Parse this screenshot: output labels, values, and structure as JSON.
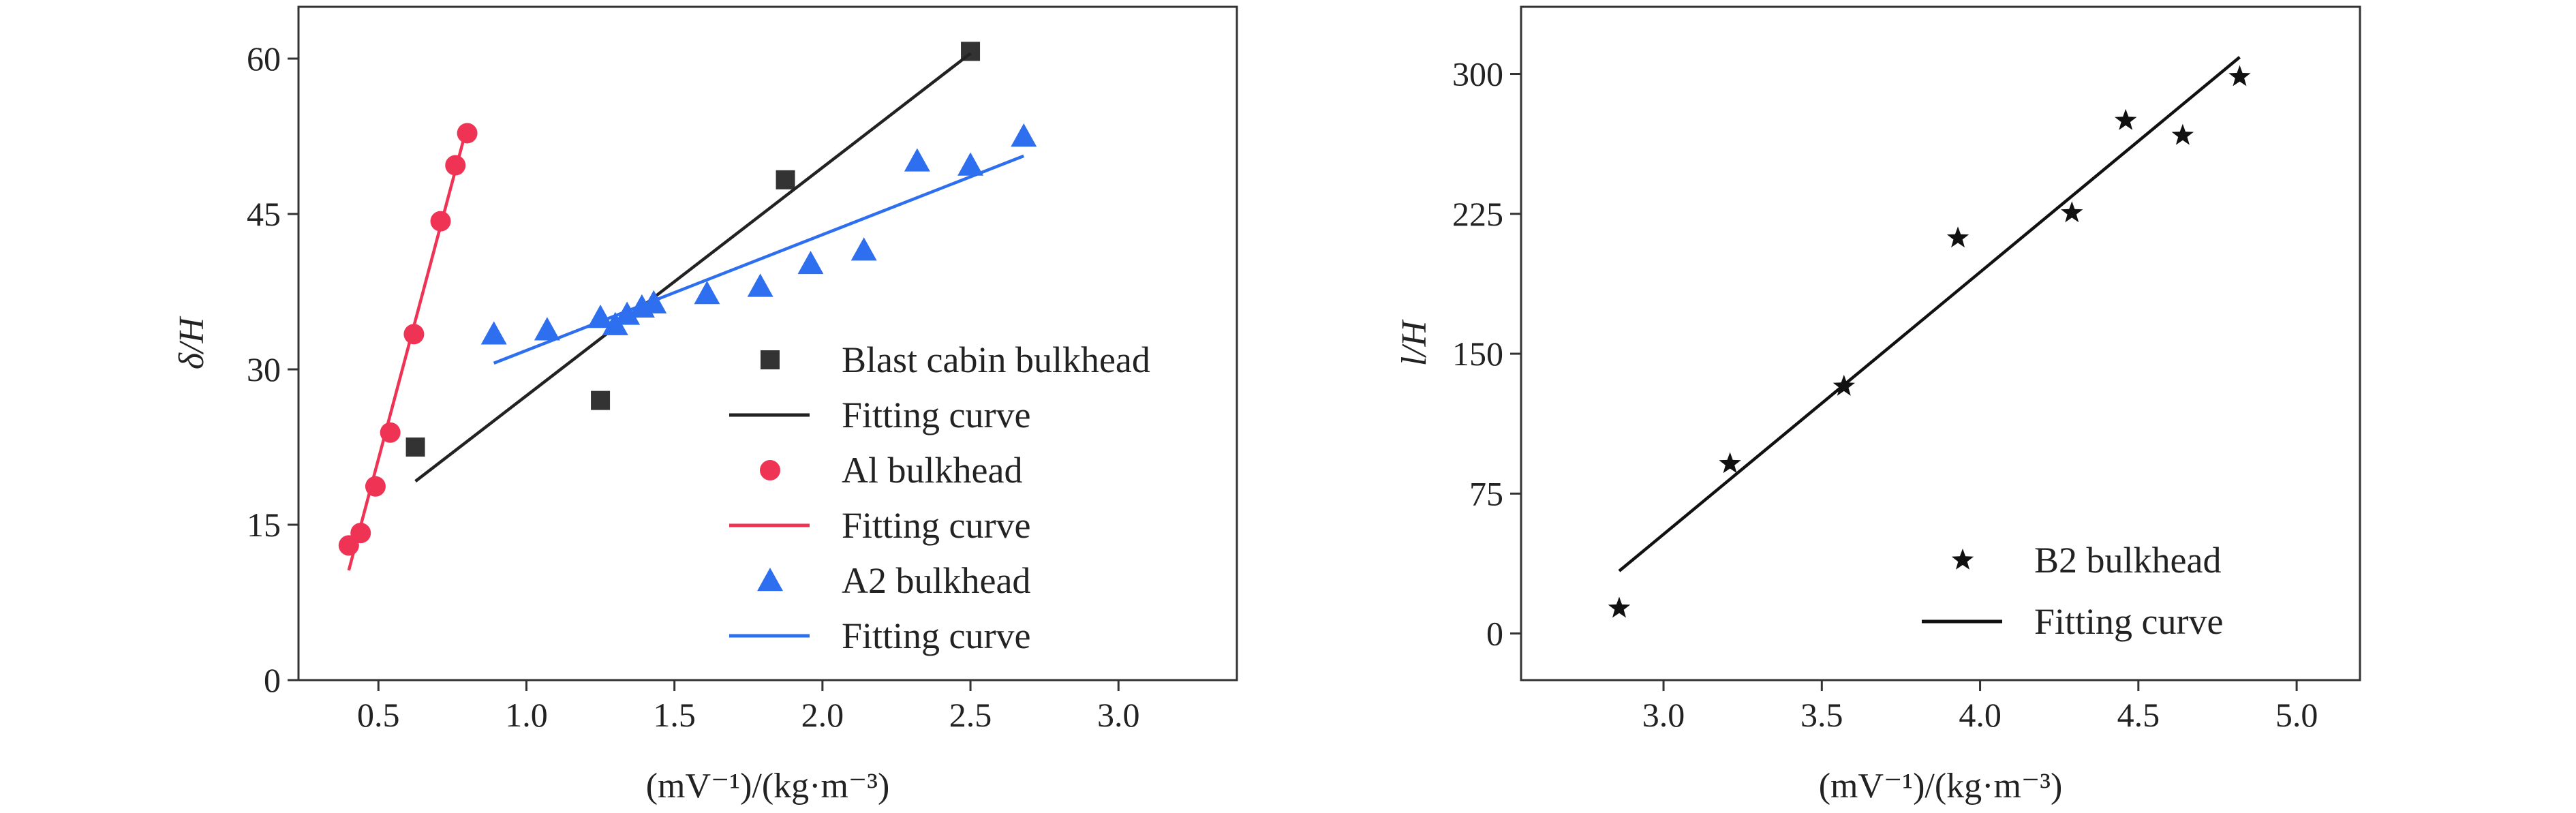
{
  "chart_data": [
    {
      "type": "scatter",
      "xlabel": "(mV⁻¹)/(kg·m⁻³)",
      "ylabel": "δ/H",
      "xlim": [
        0.23,
        3.4
      ],
      "ylim": [
        0,
        65
      ],
      "xticks": [
        "0.5",
        "1.0",
        "1.5",
        "2.0",
        "2.5",
        "3.0"
      ],
      "yticks": [
        "0",
        "15",
        "30",
        "45",
        "60"
      ],
      "legend_position": "lower-right",
      "series": [
        {
          "name": "Blast cabin bulkhead",
          "marker": "square",
          "color": "#333333",
          "points": [
            [
              0.625,
              22.5
            ],
            [
              1.25,
              27.0
            ],
            [
              1.875,
              48.3
            ],
            [
              2.5,
              60.7
            ]
          ]
        },
        {
          "name": "Fitting curve",
          "kind": "line",
          "color": "#222222",
          "points": [
            [
              0.625,
              19.2
            ],
            [
              2.5,
              60.5
            ]
          ]
        },
        {
          "name": "Al bulkhead",
          "marker": "circle",
          "color": "#ee3355",
          "points": [
            [
              0.4,
              13.0
            ],
            [
              0.44,
              14.2
            ],
            [
              0.49,
              18.7
            ],
            [
              0.54,
              23.9
            ],
            [
              0.62,
              33.4
            ],
            [
              0.71,
              44.3
            ],
            [
              0.76,
              49.7
            ],
            [
              0.8,
              52.8
            ]
          ]
        },
        {
          "name": "Fitting curve",
          "kind": "line",
          "color": "#ee3355",
          "points": [
            [
              0.4,
              10.6
            ],
            [
              0.8,
              53.5
            ]
          ]
        },
        {
          "name": "A2 bulkhead",
          "marker": "triangle",
          "color": "#2e6ff0",
          "points": [
            [
              0.89,
              33.4
            ],
            [
              1.07,
              33.8
            ],
            [
              1.25,
              35.0
            ],
            [
              1.3,
              34.3
            ],
            [
              1.34,
              35.3
            ],
            [
              1.39,
              36.0
            ],
            [
              1.43,
              36.4
            ],
            [
              1.61,
              37.3
            ],
            [
              1.79,
              38.0
            ],
            [
              1.96,
              40.2
            ],
            [
              2.14,
              41.5
            ],
            [
              2.32,
              50.1
            ],
            [
              2.5,
              49.7
            ],
            [
              2.68,
              52.5
            ]
          ]
        },
        {
          "name": "Fitting curve",
          "kind": "line",
          "color": "#2e6ff0",
          "points": [
            [
              0.89,
              30.6
            ],
            [
              2.68,
              50.6
            ]
          ]
        }
      ]
    },
    {
      "type": "scatter",
      "xlabel": "(mV⁻¹)/(kg·m⁻³)",
      "ylabel": "l/H",
      "xlim": [
        2.55,
        5.2
      ],
      "ylim": [
        -25,
        336
      ],
      "xticks": [
        "3.0",
        "3.5",
        "4.0",
        "4.5",
        "5.0"
      ],
      "yticks": [
        "0",
        "75",
        "150",
        "225",
        "300"
      ],
      "legend_position": "lower-right",
      "series": [
        {
          "name": "B2 bulkhead",
          "marker": "star",
          "color": "#111111",
          "points": [
            [
              2.86,
              13.5
            ],
            [
              3.21,
              91.0
            ],
            [
              3.57,
              132.5
            ],
            [
              3.93,
              212.0
            ],
            [
              4.29,
              225.5
            ],
            [
              4.46,
              275.0
            ],
            [
              4.64,
              267.0
            ],
            [
              4.82,
              298.5
            ]
          ]
        },
        {
          "name": "Fitting curve",
          "kind": "line",
          "color": "#111111",
          "points": [
            [
              2.86,
              33.5
            ],
            [
              4.82,
              309.0
            ]
          ]
        }
      ]
    }
  ]
}
